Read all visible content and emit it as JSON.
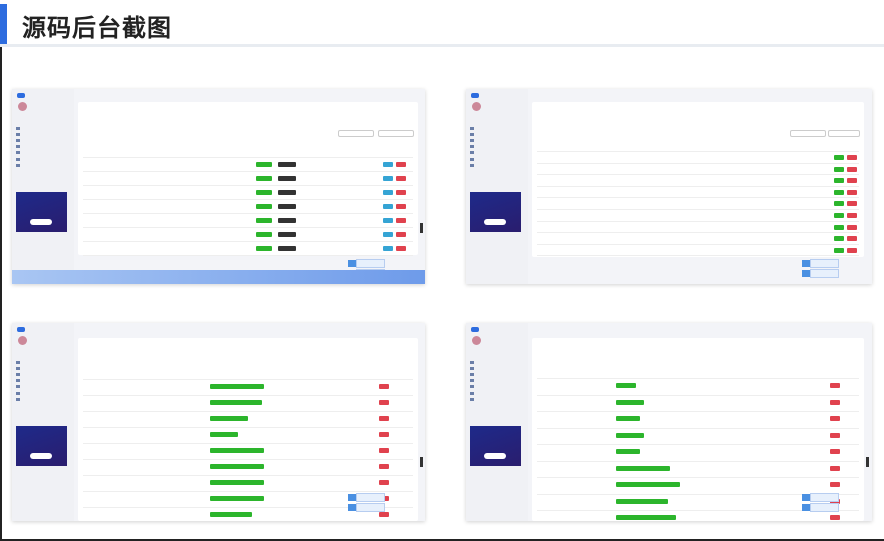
{
  "header": {
    "title": "源码后台截图",
    "accent_color": "#2d6cdf"
  },
  "screenshots": [
    {
      "id": "s1",
      "columns": 6,
      "rows": 7,
      "type": "list-actions"
    },
    {
      "id": "s2",
      "columns": 5,
      "rows": 10,
      "type": "list-simple"
    },
    {
      "id": "s3",
      "columns": 5,
      "rows": 9,
      "type": "list-bars"
    },
    {
      "id": "s4",
      "columns": 4,
      "rows": 9,
      "type": "list-bars-narrow"
    }
  ],
  "colors": {
    "green": "#2cb52c",
    "red": "#e0424e",
    "cyan": "#35a4d4",
    "sidebar": "#f0f1f5",
    "ad": "#1e2a8a"
  }
}
